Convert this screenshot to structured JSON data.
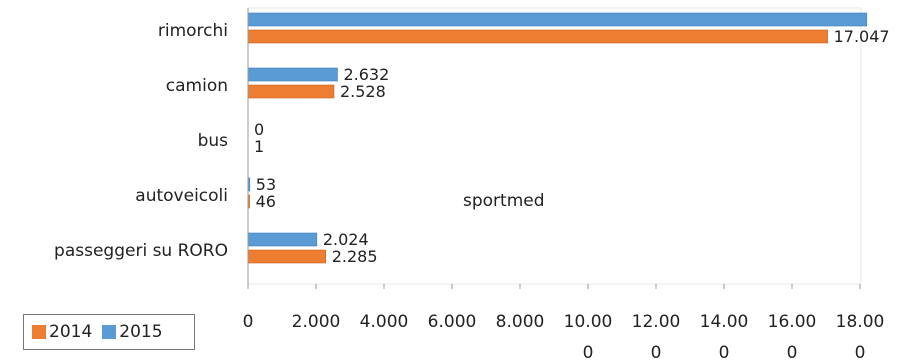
{
  "chart_data": {
    "type": "bar",
    "orientation": "horizontal",
    "categories": [
      "rimorchi",
      "camion",
      "bus",
      "autoveicoli",
      "passeggeri su RORO"
    ],
    "series": [
      {
        "name": "2015",
        "color": "#5b9bd5",
        "values": [
          18200,
          2632,
          0,
          53,
          2024
        ],
        "labels": [
          "",
          "2.632",
          "0",
          "53",
          "2.024"
        ]
      },
      {
        "name": "2014",
        "color": "#ed7d31",
        "values": [
          17047,
          2528,
          1,
          46,
          2285
        ],
        "labels": [
          "17.047",
          "2.528",
          "1",
          "46",
          "2.285"
        ]
      }
    ],
    "xlim": [
      0,
      18000
    ],
    "ticks": [
      0,
      2000,
      4000,
      6000,
      8000,
      10000,
      12000,
      14000,
      16000,
      18000
    ],
    "tick_labels": [
      [
        "0",
        ""
      ],
      [
        "2.000",
        ""
      ],
      [
        "4.000",
        ""
      ],
      [
        "6.000",
        ""
      ],
      [
        "8.000",
        ""
      ],
      [
        "10.00",
        "0"
      ],
      [
        "12.00",
        "0"
      ],
      [
        "14.00",
        "0"
      ],
      [
        "16.00",
        "0"
      ],
      [
        "18.00",
        "0"
      ]
    ],
    "annotation": "sportmed",
    "grid": false
  },
  "legend": {
    "items": [
      {
        "label": "2014",
        "color": "#ed7d31"
      },
      {
        "label": "2015",
        "color": "#5b9bd5"
      }
    ]
  }
}
